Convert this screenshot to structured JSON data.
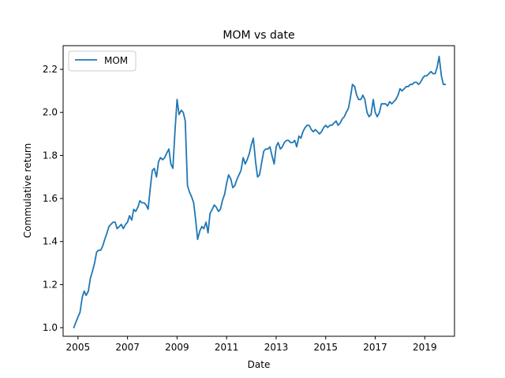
{
  "chart_data": {
    "type": "line",
    "title": "MOM vs date",
    "xlabel": "Date",
    "ylabel": "Commulative return",
    "xlim": [
      2004.4,
      2020.2
    ],
    "ylim": [
      0.96,
      2.31
    ],
    "x_ticks": [
      2005,
      2007,
      2009,
      2011,
      2013,
      2015,
      2017,
      2019
    ],
    "y_ticks": [
      1.0,
      1.2,
      1.4,
      1.6,
      1.8,
      2.0,
      2.2
    ],
    "y_tick_labels": [
      "1.0",
      "1.2",
      "1.4",
      "1.6",
      "1.8",
      "2.0",
      "2.2"
    ],
    "grid": false,
    "legend_position": "upper-left",
    "series": [
      {
        "name": "MOM",
        "color": "#1f77b4",
        "x": [
          2004.83,
          2005.0,
          2005.08,
          2005.17,
          2005.25,
          2005.33,
          2005.42,
          2005.5,
          2005.58,
          2005.67,
          2005.75,
          2005.83,
          2005.92,
          2006.0,
          2006.08,
          2006.17,
          2006.25,
          2006.33,
          2006.42,
          2006.5,
          2006.58,
          2006.67,
          2006.75,
          2006.83,
          2006.92,
          2007.0,
          2007.08,
          2007.17,
          2007.25,
          2007.33,
          2007.42,
          2007.5,
          2007.58,
          2007.67,
          2007.75,
          2007.83,
          2007.92,
          2008.0,
          2008.08,
          2008.17,
          2008.25,
          2008.33,
          2008.42,
          2008.5,
          2008.58,
          2008.67,
          2008.75,
          2008.83,
          2008.92,
          2009.0,
          2009.08,
          2009.17,
          2009.25,
          2009.33,
          2009.42,
          2009.5,
          2009.58,
          2009.67,
          2009.75,
          2009.83,
          2009.92,
          2010.0,
          2010.08,
          2010.17,
          2010.25,
          2010.33,
          2010.42,
          2010.5,
          2010.58,
          2010.67,
          2010.75,
          2010.83,
          2010.92,
          2011.0,
          2011.08,
          2011.17,
          2011.25,
          2011.33,
          2011.42,
          2011.5,
          2011.58,
          2011.67,
          2011.75,
          2011.83,
          2011.92,
          2012.0,
          2012.08,
          2012.17,
          2012.25,
          2012.33,
          2012.42,
          2012.5,
          2012.58,
          2012.67,
          2012.75,
          2012.83,
          2012.92,
          2013.0,
          2013.08,
          2013.17,
          2013.25,
          2013.33,
          2013.42,
          2013.5,
          2013.58,
          2013.67,
          2013.75,
          2013.83,
          2013.92,
          2014.0,
          2014.08,
          2014.17,
          2014.25,
          2014.33,
          2014.42,
          2014.5,
          2014.58,
          2014.67,
          2014.75,
          2014.83,
          2014.92,
          2015.0,
          2015.08,
          2015.17,
          2015.25,
          2015.33,
          2015.42,
          2015.5,
          2015.58,
          2015.67,
          2015.75,
          2015.83,
          2015.92,
          2016.0,
          2016.08,
          2016.17,
          2016.25,
          2016.33,
          2016.42,
          2016.5,
          2016.58,
          2016.67,
          2016.75,
          2016.83,
          2016.92,
          2017.0,
          2017.08,
          2017.17,
          2017.25,
          2017.33,
          2017.42,
          2017.5,
          2017.58,
          2017.67,
          2017.75,
          2017.83,
          2017.92,
          2018.0,
          2018.08,
          2018.17,
          2018.25,
          2018.33,
          2018.42,
          2018.5,
          2018.58,
          2018.67,
          2018.75,
          2018.83,
          2018.92,
          2019.0,
          2019.08,
          2019.17,
          2019.25,
          2019.33,
          2019.42,
          2019.5,
          2019.58,
          2019.67,
          2019.75,
          2019.83
        ],
        "values": [
          1.0,
          1.05,
          1.07,
          1.14,
          1.17,
          1.15,
          1.17,
          1.23,
          1.26,
          1.3,
          1.35,
          1.36,
          1.36,
          1.38,
          1.41,
          1.44,
          1.47,
          1.48,
          1.49,
          1.49,
          1.46,
          1.47,
          1.48,
          1.46,
          1.48,
          1.49,
          1.52,
          1.5,
          1.55,
          1.54,
          1.56,
          1.59,
          1.58,
          1.58,
          1.57,
          1.55,
          1.65,
          1.73,
          1.74,
          1.7,
          1.77,
          1.79,
          1.78,
          1.79,
          1.81,
          1.83,
          1.76,
          1.74,
          1.92,
          2.06,
          1.99,
          2.01,
          2.0,
          1.96,
          1.66,
          1.63,
          1.61,
          1.58,
          1.5,
          1.41,
          1.45,
          1.47,
          1.46,
          1.49,
          1.44,
          1.53,
          1.55,
          1.57,
          1.56,
          1.54,
          1.55,
          1.59,
          1.62,
          1.67,
          1.71,
          1.69,
          1.65,
          1.66,
          1.69,
          1.71,
          1.73,
          1.79,
          1.76,
          1.78,
          1.81,
          1.85,
          1.88,
          1.77,
          1.7,
          1.71,
          1.77,
          1.82,
          1.83,
          1.83,
          1.84,
          1.8,
          1.76,
          1.84,
          1.86,
          1.83,
          1.84,
          1.86,
          1.87,
          1.87,
          1.86,
          1.86,
          1.87,
          1.84,
          1.89,
          1.88,
          1.91,
          1.93,
          1.94,
          1.94,
          1.92,
          1.91,
          1.92,
          1.91,
          1.9,
          1.91,
          1.93,
          1.94,
          1.93,
          1.94,
          1.94,
          1.95,
          1.96,
          1.94,
          1.95,
          1.97,
          1.98,
          2.0,
          2.02,
          2.07,
          2.13,
          2.12,
          2.08,
          2.06,
          2.06,
          2.08,
          2.06,
          2.0,
          1.98,
          1.99,
          2.06,
          2.0,
          1.98,
          2.0,
          2.04,
          2.04,
          2.04,
          2.03,
          2.05,
          2.04,
          2.05,
          2.06,
          2.08,
          2.11,
          2.1,
          2.11,
          2.12,
          2.12,
          2.13,
          2.13,
          2.14,
          2.14,
          2.13,
          2.14,
          2.16,
          2.17,
          2.17,
          2.18,
          2.19,
          2.18,
          2.18,
          2.21,
          2.26,
          2.17,
          2.13,
          2.13
        ]
      }
    ]
  }
}
